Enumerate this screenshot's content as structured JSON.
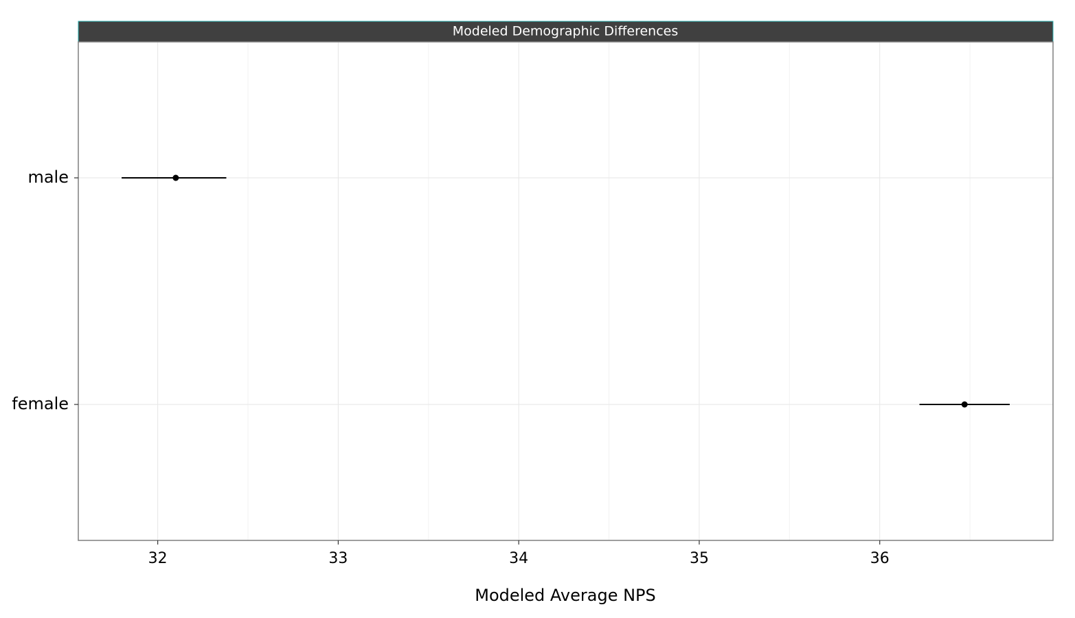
{
  "chart_data": {
    "type": "pointrange",
    "strip_title": "Modeled Demographic Differences",
    "x_label": "Modeled Average NPS",
    "categories": [
      "female",
      "male"
    ],
    "values": [
      36.47,
      32.1
    ],
    "lower": [
      36.22,
      31.8
    ],
    "upper": [
      36.72,
      32.38
    ],
    "color": "#000000",
    "xlim": [
      31.56,
      36.96
    ],
    "xticks": [
      32,
      33,
      34,
      35,
      36
    ],
    "minor_xticks": [
      32.5,
      33.5,
      34.5,
      35.5,
      36.5
    ],
    "grid": true
  }
}
